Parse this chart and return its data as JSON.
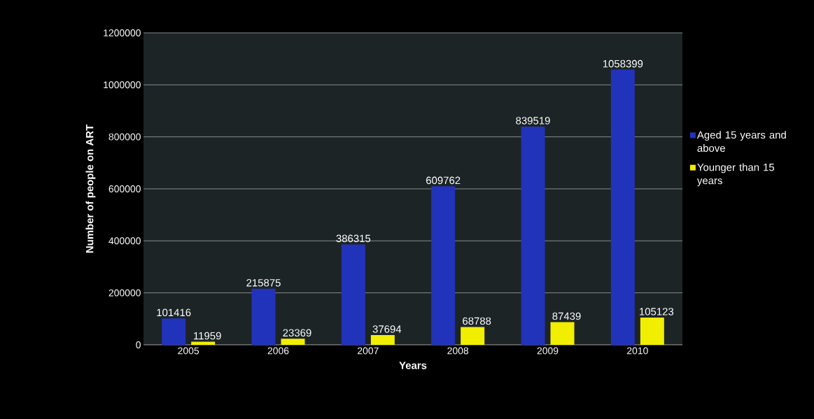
{
  "chart_data": {
    "type": "bar",
    "xlabel": "Years",
    "ylabel": "Number of people on ART",
    "categories": [
      "2005",
      "2006",
      "2007",
      "2008",
      "2009",
      "2010"
    ],
    "series": [
      {
        "name": "Aged 15 years and above",
        "color": "#2233bb",
        "values": [
          101416,
          215875,
          386315,
          609762,
          839519,
          1058399
        ]
      },
      {
        "name": "Younger than 15 years",
        "color": "#f2ee00",
        "values": [
          11959,
          23369,
          37694,
          68788,
          87439,
          105123
        ]
      }
    ],
    "ylim": [
      0,
      1200000
    ],
    "yticks": [
      0,
      200000,
      400000,
      600000,
      800000,
      1000000,
      1200000
    ],
    "grid": "y",
    "legend": "right",
    "data_labels": true
  }
}
